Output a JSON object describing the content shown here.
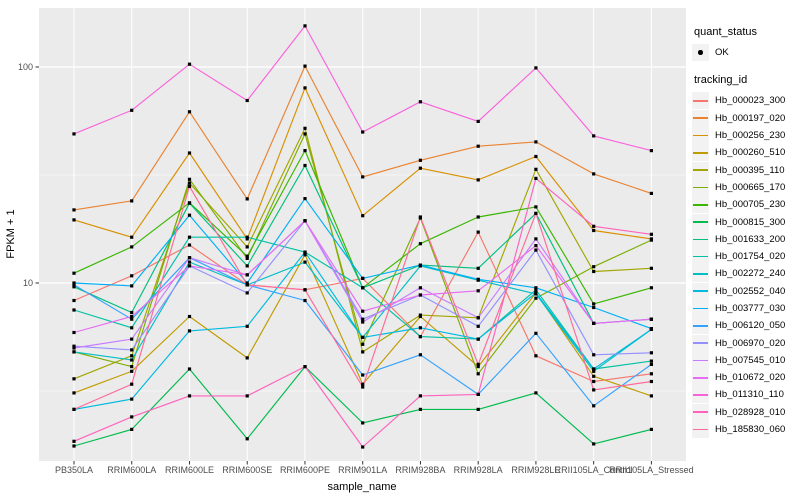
{
  "figure": {
    "background": "#FFFFFF",
    "panel_background": "#EBEBEB",
    "grid_color": "#FFFFFF",
    "tick_text_color": "#4D4D4D",
    "point_color": "#000000"
  },
  "legend": {
    "quant_status_title": "quant_status",
    "quant_status_items": [
      {
        "label": "OK",
        "symbol": "black-point"
      }
    ],
    "tracking_id_title": "tracking_id"
  },
  "chart_data": {
    "type": "line",
    "title": "",
    "xlabel": "sample_name",
    "ylabel": "FPKM + 1",
    "y_scale": "log10",
    "y_ticks": [
      10,
      100
    ],
    "y_minor": [
      3.1623,
      31.6228
    ],
    "ylim": [
      1.5,
      187
    ],
    "grid": true,
    "legend_position": "right",
    "marker": "small-black-square",
    "categories": [
      "PB350LA",
      "RRIM600LA",
      "RRIM600LE",
      "RRIM600SE",
      "RRIM600PE",
      "RRIM901LA",
      "RRIM928BA",
      "RRIM928LA",
      "RRIM928LE",
      "RRII105LA_Control",
      "RRII105LA_Stressed"
    ],
    "series": [
      {
        "name": "Hb_000023_300",
        "color": "#F8766D",
        "values": [
          8.3,
          10.8,
          15.0,
          9.8,
          9.3,
          10.5,
          5.65,
          17.2,
          4.6,
          3.5,
          3.8
        ]
      },
      {
        "name": "Hb_000197_020",
        "color": "#EA8331",
        "values": [
          21.8,
          24.0,
          62.0,
          24.5,
          101.0,
          31.0,
          37.0,
          43.0,
          45.0,
          32.0,
          26.0
        ]
      },
      {
        "name": "Hb_000256_230",
        "color": "#D89000",
        "values": [
          19.6,
          16.3,
          40.0,
          16.0,
          80.0,
          20.5,
          34.0,
          30.0,
          38.5,
          17.5,
          16.0
        ]
      },
      {
        "name": "Hb_000260_510",
        "color": "#C09B00",
        "values": [
          3.1,
          3.9,
          7.0,
          4.5,
          13.5,
          3.4,
          7.0,
          4.1,
          9.0,
          3.7,
          3.0
        ]
      },
      {
        "name": "Hb_000395_110",
        "color": "#A3A500",
        "values": [
          3.6,
          4.6,
          29.0,
          14.7,
          52.0,
          4.8,
          7.1,
          6.9,
          33.6,
          11.3,
          11.7
        ]
      },
      {
        "name": "Hb_000665_170",
        "color": "#7CAE00",
        "values": [
          4.8,
          4.1,
          30.2,
          13.0,
          49.0,
          5.2,
          20.0,
          3.8,
          8.5,
          11.9,
          15.8
        ]
      },
      {
        "name": "Hb_000705_230",
        "color": "#39B600",
        "values": [
          11.1,
          14.7,
          23.5,
          13.3,
          41.0,
          9.5,
          15.2,
          20.2,
          22.5,
          8.0,
          9.5
        ]
      },
      {
        "name": "Hb_000815_300",
        "color": "#00BB4E",
        "values": [
          1.76,
          2.1,
          4.0,
          1.9,
          4.1,
          2.25,
          2.6,
          2.6,
          3.1,
          1.8,
          2.1
        ]
      },
      {
        "name": "Hb_001633_200",
        "color": "#00BF7D",
        "values": [
          9.6,
          7.3,
          23.4,
          12.0,
          35.0,
          9.5,
          12.1,
          11.7,
          21.0,
          6.5,
          6.8
        ]
      },
      {
        "name": "Hb_001754_020",
        "color": "#00C1A3",
        "values": [
          7.5,
          6.2,
          16.3,
          16.3,
          13.9,
          9.5,
          5.65,
          5.5,
          9.3,
          4.0,
          4.35
        ]
      },
      {
        "name": "Hb_002272_240",
        "color": "#00BFC4",
        "values": [
          4.8,
          4.4,
          12.5,
          9.8,
          12.5,
          5.6,
          12.0,
          10.3,
          8.9,
          3.9,
          6.1
        ]
      },
      {
        "name": "Hb_002552_040",
        "color": "#00BAE0",
        "values": [
          2.6,
          2.9,
          6.0,
          6.3,
          13.9,
          5.6,
          6.2,
          5.5,
          9.0,
          4.0,
          6.1
        ]
      },
      {
        "name": "Hb_003777_030",
        "color": "#00B0F6",
        "values": [
          10.0,
          9.7,
          20.6,
          10.0,
          24.6,
          10.5,
          12.1,
          10.4,
          9.5,
          7.7,
          6.15
        ]
      },
      {
        "name": "Hb_006120_050",
        "color": "#35A2FF",
        "values": [
          9.8,
          6.8,
          13.1,
          9.8,
          8.3,
          3.75,
          4.65,
          3.05,
          5.85,
          2.7,
          4.2
        ]
      },
      {
        "name": "Hb_006970_020",
        "color": "#9590FF",
        "values": [
          5.1,
          4.9,
          12.0,
          9.0,
          19.4,
          6.8,
          8.8,
          6.3,
          14.2,
          4.65,
          4.75
        ]
      },
      {
        "name": "Hb_007545_010",
        "color": "#C77CFF",
        "values": [
          5.0,
          5.5,
          13.1,
          10.9,
          19.4,
          6.6,
          9.5,
          6.9,
          16.0,
          6.5,
          6.8
        ]
      },
      {
        "name": "Hb_010672_020",
        "color": "#E76BF3",
        "values": [
          5.9,
          7.0,
          12.0,
          10.9,
          19.4,
          7.4,
          8.8,
          9.2,
          14.9,
          6.5,
          6.8
        ]
      },
      {
        "name": "Hb_011310_110",
        "color": "#FA62DB",
        "values": [
          49.0,
          63.0,
          103.0,
          70.0,
          155.0,
          50.0,
          69.0,
          56.0,
          99.0,
          48.0,
          41.0
        ]
      },
      {
        "name": "Hb_028928_010",
        "color": "#FF62BC",
        "values": [
          1.85,
          2.4,
          3.0,
          3.0,
          4.1,
          1.74,
          3.0,
          3.05,
          30.5,
          18.3,
          16.8
        ]
      },
      {
        "name": "Hb_185830_060",
        "color": "#FF6A98",
        "values": [
          2.6,
          3.4,
          28.0,
          9.8,
          9.3,
          3.3,
          20.2,
          4.2,
          21.0,
          3.2,
          3.5
        ]
      }
    ]
  }
}
